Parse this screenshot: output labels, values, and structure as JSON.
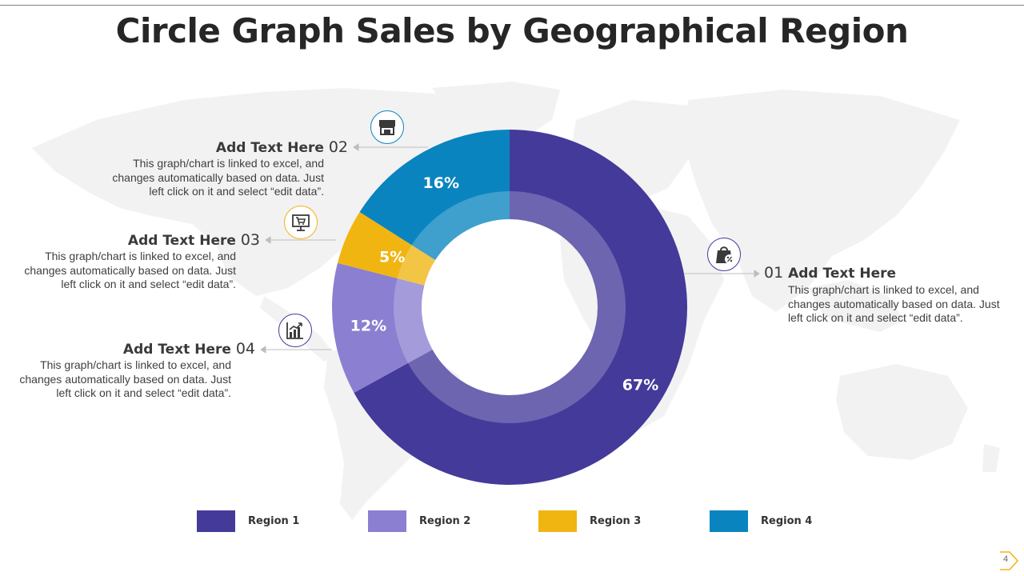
{
  "title": "Circle Graph Sales by Geographical Region",
  "chart_data": {
    "type": "pie",
    "variant": "donut",
    "categories": [
      "Region 1",
      "Region 2",
      "Region 3",
      "Region 4"
    ],
    "values": [
      67,
      12,
      5,
      16
    ],
    "labels": [
      "67%",
      "12%",
      "5%",
      "16%"
    ],
    "colors": [
      "#443a9a",
      "#8a7fd0",
      "#f0b511",
      "#0a84bf"
    ],
    "legend_position": "bottom"
  },
  "callouts": [
    {
      "number": "01",
      "heading": "Add Text Here",
      "description": "This graph/chart is linked to excel, and changes automatically based on data. Just left click on it and select “edit data”.",
      "icon": "shopping-bag-percent-icon",
      "icon_color": "#443a9a"
    },
    {
      "number": "02",
      "heading": "Add Text Here",
      "description": "This graph/chart is linked to excel, and changes automatically based on data. Just left click on it and select “edit data”.",
      "icon": "storefront-icon",
      "icon_color": "#0a84bf"
    },
    {
      "number": "03",
      "heading": "Add Text Here",
      "description": "This graph/chart is linked to excel, and changes automatically based on data. Just left click on it and select “edit data”.",
      "icon": "presentation-cart-icon",
      "icon_color": "#f0b511"
    },
    {
      "number": "04",
      "heading": "Add Text Here",
      "description": "This graph/chart is linked to excel, and changes automatically based on data. Just left click on it and select “edit data”.",
      "icon": "bar-chart-growth-icon",
      "icon_color": "#443a9a"
    }
  ],
  "page_number": "4"
}
